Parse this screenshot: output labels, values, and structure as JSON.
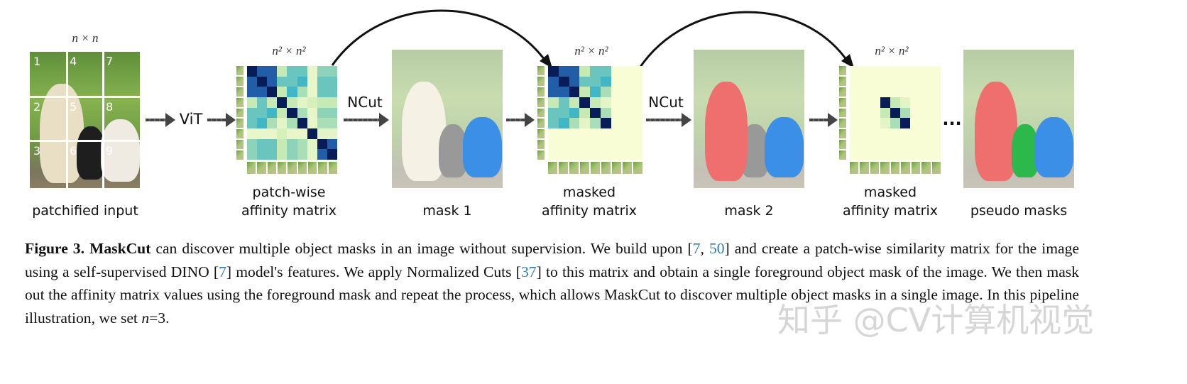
{
  "figure": {
    "input": {
      "dim_label": "n × n",
      "label": "patchified input",
      "patch_numbers": [
        "1",
        "2",
        "3",
        "4",
        "5",
        "6",
        "7",
        "8",
        "9"
      ]
    },
    "vit_label": "ViT",
    "ncut_label": "NCut",
    "ellipsis": "...",
    "matrix_dim_label": "n² × n²",
    "affinity": {
      "label_line1": "patch-wise",
      "label_line2": "affinity matrix"
    },
    "masked1": {
      "label_line1": "masked",
      "label_line2": "affinity matrix"
    },
    "masked2": {
      "label_line1": "masked",
      "label_line2": "affinity matrix"
    },
    "mask1_label": "mask 1",
    "mask2_label": "mask 2",
    "pseudo_label": "pseudo masks",
    "mask_colors": {
      "first": "#3b8fe6",
      "second": "#ef6f6f",
      "third": "#2cb84b"
    },
    "matrix_values": [
      [
        1,
        0.85,
        0.85,
        0.2,
        0.5,
        0.5,
        0.08,
        0.4,
        0.4
      ],
      [
        0.85,
        1,
        0.85,
        0.5,
        0.5,
        0.6,
        0.08,
        0.5,
        0.5
      ],
      [
        0.85,
        0.85,
        1,
        0.2,
        0.6,
        0.3,
        0.08,
        0.5,
        0.5
      ],
      [
        0.2,
        0.5,
        0.2,
        1,
        0.2,
        0.1,
        0.15,
        0.2,
        0.2
      ],
      [
        0.5,
        0.5,
        0.6,
        0.2,
        1,
        0.3,
        0.08,
        0.4,
        0.4
      ],
      [
        0.5,
        0.6,
        0.3,
        0.1,
        0.3,
        1,
        0.08,
        0.3,
        0.3
      ],
      [
        0.08,
        0.08,
        0.08,
        0.15,
        0.08,
        0.08,
        1,
        0.1,
        0.1
      ],
      [
        0.4,
        0.5,
        0.5,
        0.2,
        0.4,
        0.3,
        0.1,
        1,
        0.85
      ],
      [
        0.4,
        0.5,
        0.5,
        0.2,
        0.4,
        0.3,
        0.1,
        0.85,
        1
      ]
    ]
  },
  "caption": {
    "fig_num": "Figure 3.",
    "name": "MaskCut",
    "t1": " can discover multiple object masks in an image without supervision. We build upon [",
    "c1": "7",
    "t2": ", ",
    "c2": "50",
    "t3": "] and create a patch-wise similarity matrix for the image using a self-supervised DINO [",
    "c3": "7",
    "t4": "] model's features.  We apply Normalized Cuts [",
    "c4": "37",
    "t5": "] to this matrix and obtain a single foreground object mask of the image. We then mask out the affinity matrix values using the foreground mask and repeat the process, which allows MaskCut to discover multiple object masks in a single image. In this pipeline illustration, we set ",
    "n_var": "n",
    "t6": "=3."
  },
  "watermark": "知乎 @CV计算机视觉"
}
